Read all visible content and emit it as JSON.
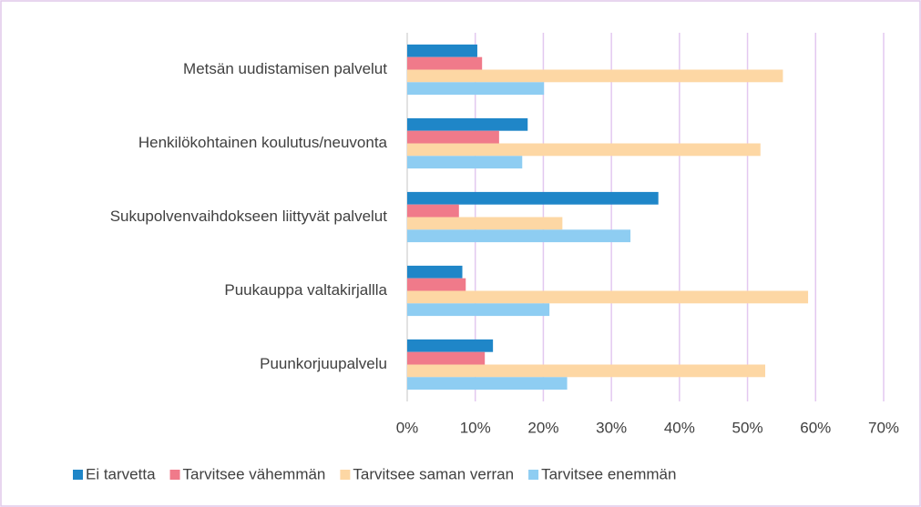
{
  "chart_data": {
    "type": "barh",
    "categories": [
      "Metsän uudistamisen palvelut",
      "Henkilökohtainen koulutus/neuvonta",
      "Sukupolvenvaihdokseen liittyvät palvelut",
      "Puukauppa valtakirjallla",
      "Puunkorjuupalvelu"
    ],
    "series": [
      {
        "name": "Ei tarvetta",
        "color": "#1f86c8",
        "values": [
          10.3,
          17.7,
          36.9,
          8.1,
          12.6
        ]
      },
      {
        "name": "Tarvitsee vähemmän",
        "color": "#f07a8a",
        "values": [
          11,
          13.5,
          7.6,
          8.6,
          11.4
        ]
      },
      {
        "name": "Tarvitsee saman verran",
        "color": "#fdd7a4",
        "values": [
          55.2,
          51.9,
          22.8,
          58.9,
          52.6
        ]
      },
      {
        "name": "Tarvitsee enemmän",
        "color": "#8ecdf2",
        "values": [
          20.1,
          16.9,
          32.8,
          20.9,
          23.5
        ]
      }
    ],
    "xlim": [
      0,
      70
    ],
    "xticks": [
      {
        "value": 0,
        "label": "0%"
      },
      {
        "value": 10,
        "label": "10%"
      },
      {
        "value": 20,
        "label": "20%"
      },
      {
        "value": 30,
        "label": "30%"
      },
      {
        "value": 40,
        "label": "40%"
      },
      {
        "value": 50,
        "label": "50%"
      },
      {
        "value": 60,
        "label": "60%"
      },
      {
        "value": 70,
        "label": "70%"
      }
    ],
    "grid": true,
    "legend": "bottom"
  }
}
